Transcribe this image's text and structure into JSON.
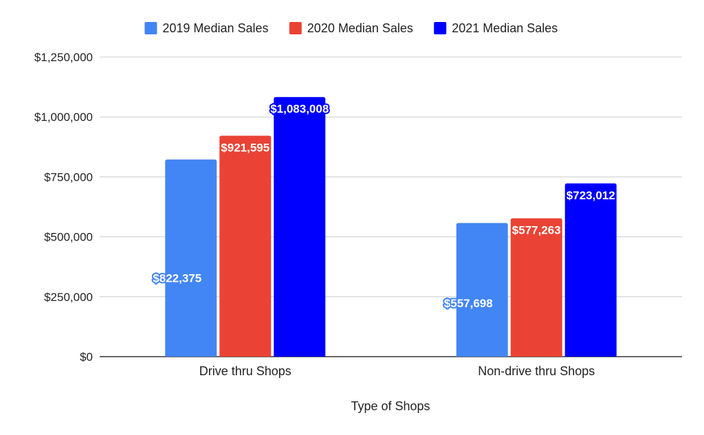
{
  "chart_data": {
    "type": "bar",
    "title": "",
    "xlabel": "Type of Shops",
    "ylabel": "",
    "categories": [
      "Drive thru Shops",
      "Non-drive thru Shops"
    ],
    "series": [
      {
        "name": "2019 Median Sales",
        "values": [
          822375,
          557698
        ],
        "labels": [
          "$822,375",
          "$557,698"
        ],
        "color": "#4285f4"
      },
      {
        "name": "2020 Median Sales",
        "values": [
          921595,
          577263
        ],
        "labels": [
          "$921,595",
          "$577,263"
        ],
        "color": "#ea4335"
      },
      {
        "name": "2021 Median Sales",
        "values": [
          1083008,
          723012
        ],
        "labels": [
          "$1,083,008",
          "$723,012"
        ],
        "color": "#0000ff"
      }
    ],
    "ylim": [
      0,
      1250000
    ],
    "yticks": [
      0,
      250000,
      500000,
      750000,
      1000000,
      1250000
    ],
    "ytick_labels": [
      "$0",
      "$250,000",
      "$500,000",
      "$750,000",
      "$1,000,000",
      "$1,250,000"
    ],
    "grid": true,
    "legend": "top-center"
  }
}
